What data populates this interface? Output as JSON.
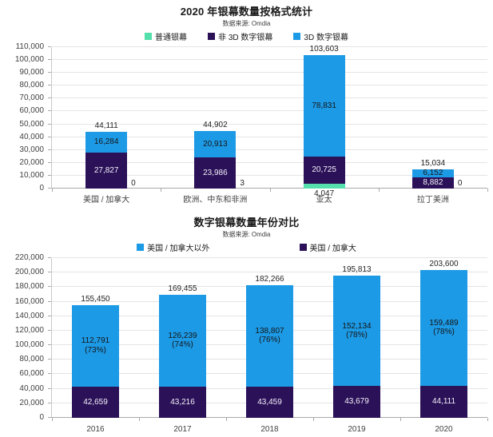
{
  "source_note": "Omdia",
  "chart_data": [
    {
      "type": "bar",
      "stacked": true,
      "title": "2020 年银幕数量按格式统计",
      "subtitle": "数据来源: Omdia",
      "legend_position": "top",
      "grid": true,
      "ylim": [
        0,
        110000
      ],
      "ystep": 10000,
      "categories": [
        "美国 / 加拿大",
        "欧洲、中东和非洲",
        "亚太",
        "拉丁美洲"
      ],
      "legend": [
        {
          "label": "普通银幕",
          "color": "#54dfad"
        },
        {
          "label": "非 3D 数字银幕",
          "color": "#2b1158"
        },
        {
          "label": "3D 数字银幕",
          "color": "#1d9ae6"
        }
      ],
      "series": [
        {
          "name": "普通银幕",
          "color": "#54dfad",
          "values": [
            0,
            3,
            4047,
            0
          ],
          "labels": [
            "0",
            "3",
            "4,047",
            "0"
          ],
          "label_mode": [
            "side",
            "side",
            "below",
            "side"
          ],
          "label_color": "#1f1f1f"
        },
        {
          "name": "非 3D 数字银幕",
          "color": "#2b1158",
          "values": [
            27827,
            23986,
            20725,
            8882
          ],
          "labels": [
            "27,827",
            "23,986",
            "20,725",
            "8,882"
          ],
          "label_mode": [
            "in",
            "in",
            "in",
            "in"
          ],
          "label_color": "#f5f2fa"
        },
        {
          "name": "3D 数字银幕",
          "color": "#1d9ae6",
          "values": [
            16284,
            20913,
            78831,
            6152
          ],
          "labels": [
            "16,284",
            "20,913",
            "78,831",
            "6,152"
          ],
          "label_mode": [
            "in",
            "in",
            "in",
            "in"
          ],
          "label_color": "#151515"
        }
      ],
      "totals": [
        "44,111",
        "44,902",
        "103,603",
        "15,034"
      ],
      "total_values": [
        44111,
        44902,
        103603,
        15034
      ]
    },
    {
      "type": "bar",
      "stacked": true,
      "title": "数字银幕数量年份对比",
      "subtitle": "数据来源: Omdia",
      "legend_position": "top",
      "grid": true,
      "ylim": [
        0,
        220000
      ],
      "ystep": 20000,
      "categories": [
        "2016",
        "2017",
        "2018",
        "2019",
        "2020"
      ],
      "legend": [
        {
          "label": "美国 / 加拿大以外",
          "color": "#1d9ae6"
        },
        {
          "label": "美国 / 加拿大",
          "color": "#2b1158"
        }
      ],
      "series": [
        {
          "name": "美国 / 加拿大",
          "color": "#2b1158",
          "values": [
            42659,
            43216,
            43459,
            43679,
            44111
          ],
          "labels": [
            "42,659",
            "43,216",
            "43,459",
            "43,679",
            "44,111"
          ],
          "label_mode": [
            "in",
            "in",
            "in",
            "in",
            "in"
          ],
          "label_color": "#f5f2fa"
        },
        {
          "name": "美国 / 加拿大以外",
          "color": "#1d9ae6",
          "values": [
            112791,
            126239,
            138807,
            152134,
            159489
          ],
          "labels": [
            "112,791\n(73%)",
            "126,239\n(74%)",
            "138,807\n(76%)",
            "152,134\n(78%)",
            "159,489\n(78%)"
          ],
          "label_mode": [
            "in",
            "in",
            "in",
            "in",
            "in"
          ],
          "label_color": "#151515"
        }
      ],
      "totals": [
        "155,450",
        "169,455",
        "182,266",
        "195,813",
        "203,600"
      ],
      "total_values": [
        155450,
        169455,
        182266,
        195813,
        203600
      ]
    }
  ]
}
